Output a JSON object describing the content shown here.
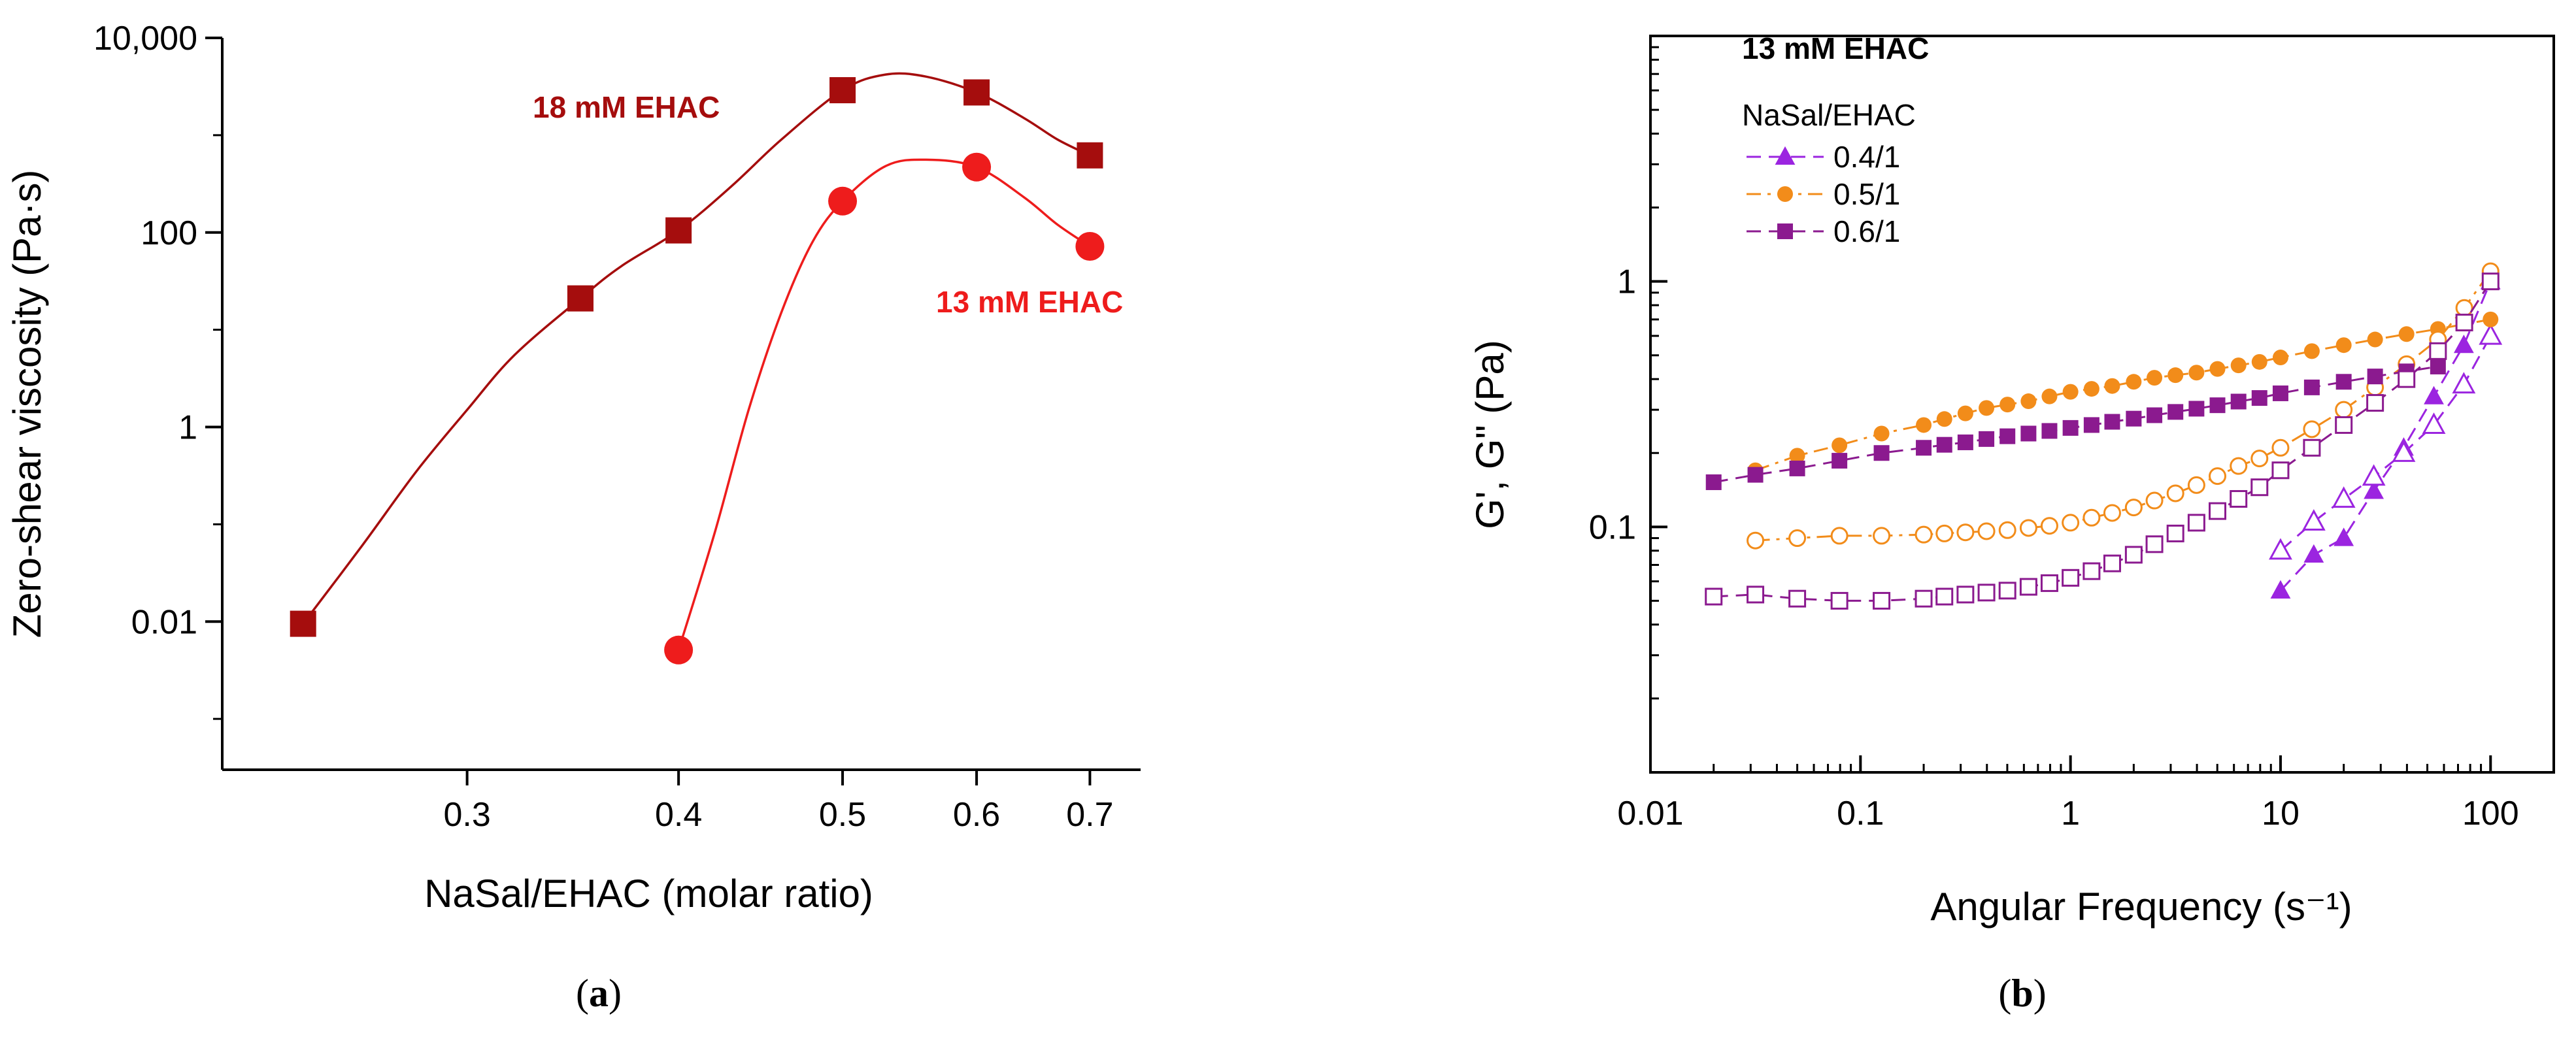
{
  "chart_data": [
    {
      "type": "scatter",
      "panel_caption": "(a)",
      "caption_letter": "a",
      "xlabel": "NaSal/EHAC (molar ratio)",
      "ylabel": "Zero-shear viscosity (Pa·s)",
      "xscale": "log",
      "yscale": "log",
      "xlim": [
        0.215,
        0.75
      ],
      "ylim": [
        0.0003,
        10000
      ],
      "xticks": [
        {
          "value": 0.3,
          "label": "0.3"
        },
        {
          "value": 0.4,
          "label": "0.4"
        },
        {
          "value": 0.5,
          "label": "0.5"
        },
        {
          "value": 0.6,
          "label": "0.6"
        },
        {
          "value": 0.7,
          "label": "0.7"
        }
      ],
      "yticks": [
        {
          "value": 0.01,
          "label": "0.01"
        },
        {
          "value": 1,
          "label": "1"
        },
        {
          "value": 100,
          "label": "100"
        },
        {
          "value": 10000,
          "label": "10,000"
        }
      ],
      "yminor_ticks": [
        0.001,
        0.1,
        10,
        1000
      ],
      "series": [
        {
          "name": "18 mM EHAC",
          "label": "18 mM EHAC",
          "color": "#a50d0d",
          "marker": "square",
          "x": [
            0.24,
            0.35,
            0.4,
            0.5,
            0.6,
            0.7
          ],
          "y": [
            0.0095,
            21,
            105,
            2900,
            2750,
            620
          ],
          "curve_x": [
            0.24,
            0.26,
            0.28,
            0.3,
            0.32,
            0.35,
            0.37,
            0.4,
            0.43,
            0.46,
            0.5,
            0.53,
            0.56,
            0.6,
            0.64,
            0.67,
            0.7
          ],
          "curve_y": [
            0.0095,
            0.06,
            0.35,
            1.5,
            5.5,
            21,
            45,
            105,
            300,
            900,
            2900,
            4200,
            4000,
            2750,
            1500,
            900,
            620
          ]
        },
        {
          "name": "13 mM EHAC",
          "label": "13 mM EHAC",
          "color": "#ee1c1c",
          "marker": "circle",
          "x": [
            0.4,
            0.5,
            0.6,
            0.7
          ],
          "y": [
            0.0051,
            210,
            470,
            72
          ],
          "curve_x": [
            0.4,
            0.42,
            0.44,
            0.46,
            0.48,
            0.5,
            0.53,
            0.56,
            0.6,
            0.64,
            0.67,
            0.7
          ],
          "curve_y": [
            0.0051,
            0.08,
            1.5,
            15,
            80,
            210,
            480,
            560,
            470,
            230,
            120,
            72
          ]
        }
      ]
    },
    {
      "type": "scatter",
      "panel_caption": "(b)",
      "caption_letter": "b",
      "title": "13 mM EHAC",
      "legend_title": "NaSal/EHAC",
      "legend_position": "top-left",
      "xlabel": "Angular Frequency (s⁻¹)",
      "ylabel": "G', G\" (Pa)",
      "xscale": "log",
      "yscale": "log",
      "xlim": [
        0.01,
        200
      ],
      "ylim": [
        0.01,
        10
      ],
      "xticks": [
        {
          "value": 0.01,
          "label": "0.01"
        },
        {
          "value": 0.1,
          "label": "0.1"
        },
        {
          "value": 1,
          "label": "1"
        },
        {
          "value": 10,
          "label": "10"
        },
        {
          "value": 100,
          "label": "100"
        }
      ],
      "yticks": [
        {
          "value": 0.1,
          "label": "0.1"
        },
        {
          "value": 1,
          "label": "1"
        }
      ],
      "series": [
        {
          "name": "0.4/1",
          "label": "0.4/1",
          "modulus": "G'",
          "filled": true,
          "color": "#9b24e0",
          "marker": "triangle",
          "dash": "dash",
          "x": [
            10,
            14.4,
            20,
            27.8,
            38.6,
            53.7,
            74.6,
            100
          ],
          "y": [
            0.055,
            0.077,
            0.09,
            0.14,
            0.21,
            0.34,
            0.55,
            1.0
          ]
        },
        {
          "name": "0.4/1 G\"",
          "label": "0.4/1",
          "modulus": "G\"",
          "filled": false,
          "color": "#9b24e0",
          "marker": "triangle",
          "dash": "dash",
          "x": [
            10,
            14.4,
            20,
            27.8,
            38.6,
            53.7,
            74.6,
            100
          ],
          "y": [
            0.08,
            0.105,
            0.13,
            0.16,
            0.2,
            0.26,
            0.38,
            0.6
          ]
        },
        {
          "name": "0.5/1",
          "label": "0.5/1",
          "modulus": "G'",
          "filled": true,
          "color": "#f28c1a",
          "marker": "circle",
          "dash": "dashdot",
          "x": [
            0.0316,
            0.05,
            0.0794,
            0.126,
            0.2,
            0.251,
            0.316,
            0.398,
            0.501,
            0.631,
            0.794,
            1.0,
            1.26,
            1.58,
            2.0,
            2.51,
            3.16,
            3.98,
            5.01,
            6.31,
            7.94,
            10,
            14.1,
            20,
            28.2,
            39.8,
            56.2,
            100
          ],
          "y": [
            0.17,
            0.195,
            0.215,
            0.24,
            0.26,
            0.275,
            0.29,
            0.305,
            0.315,
            0.325,
            0.34,
            0.355,
            0.365,
            0.375,
            0.39,
            0.405,
            0.415,
            0.425,
            0.44,
            0.455,
            0.47,
            0.49,
            0.52,
            0.55,
            0.58,
            0.61,
            0.64,
            0.7
          ]
        },
        {
          "name": "0.5/1 G\"",
          "label": "0.5/1",
          "modulus": "G\"",
          "filled": false,
          "color": "#f28c1a",
          "marker": "circle",
          "dash": "dashdot",
          "x": [
            0.0316,
            0.05,
            0.0794,
            0.126,
            0.2,
            0.251,
            0.316,
            0.398,
            0.501,
            0.631,
            0.794,
            1.0,
            1.26,
            1.58,
            2.0,
            2.51,
            3.16,
            3.98,
            5.01,
            6.31,
            7.94,
            10,
            14.1,
            20,
            28.2,
            39.8,
            56.2,
            75,
            100
          ],
          "y": [
            0.088,
            0.09,
            0.092,
            0.092,
            0.093,
            0.094,
            0.095,
            0.096,
            0.097,
            0.099,
            0.101,
            0.104,
            0.109,
            0.114,
            0.12,
            0.128,
            0.137,
            0.148,
            0.161,
            0.177,
            0.19,
            0.21,
            0.25,
            0.3,
            0.37,
            0.46,
            0.58,
            0.78,
            1.1
          ]
        },
        {
          "name": "0.6/1",
          "label": "0.6/1",
          "modulus": "G'",
          "filled": true,
          "color": "#8b1a8f",
          "marker": "square",
          "dash": "dash",
          "x": [
            0.02,
            0.0316,
            0.05,
            0.0794,
            0.126,
            0.2,
            0.251,
            0.316,
            0.398,
            0.501,
            0.631,
            0.794,
            1.0,
            1.26,
            1.58,
            2.0,
            2.51,
            3.16,
            3.98,
            5.01,
            6.31,
            7.94,
            10,
            14.1,
            20,
            28.2,
            39.8,
            56.2
          ],
          "y": [
            0.152,
            0.163,
            0.173,
            0.186,
            0.2,
            0.21,
            0.216,
            0.221,
            0.228,
            0.234,
            0.24,
            0.246,
            0.253,
            0.26,
            0.268,
            0.276,
            0.285,
            0.294,
            0.303,
            0.313,
            0.324,
            0.335,
            0.35,
            0.37,
            0.39,
            0.41,
            0.43,
            0.45
          ]
        },
        {
          "name": "0.6/1 G\"",
          "label": "0.6/1",
          "modulus": "G\"",
          "filled": false,
          "color": "#8b1a8f",
          "marker": "square",
          "dash": "dash",
          "x": [
            0.02,
            0.0316,
            0.05,
            0.0794,
            0.126,
            0.2,
            0.251,
            0.316,
            0.398,
            0.501,
            0.631,
            0.794,
            1.0,
            1.26,
            1.58,
            2.0,
            2.51,
            3.16,
            3.98,
            5.01,
            6.31,
            7.94,
            10,
            14.1,
            20,
            28.2,
            39.8,
            56.2,
            75,
            100
          ],
          "y": [
            0.052,
            0.053,
            0.051,
            0.05,
            0.05,
            0.051,
            0.052,
            0.053,
            0.054,
            0.055,
            0.057,
            0.059,
            0.062,
            0.066,
            0.071,
            0.077,
            0.085,
            0.094,
            0.104,
            0.116,
            0.13,
            0.145,
            0.17,
            0.21,
            0.26,
            0.32,
            0.4,
            0.52,
            0.68,
            1.0
          ]
        }
      ]
    }
  ]
}
